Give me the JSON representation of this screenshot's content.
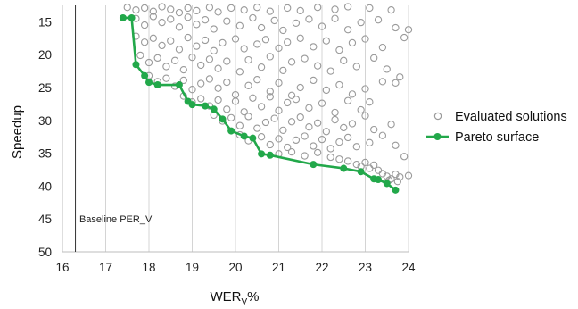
{
  "chart_data": {
    "type": "scatter",
    "xlabel": "WER",
    "xlabel_sub": "V",
    "xlabel_suffix": "%",
    "ylabel": "Speedup",
    "xlim": [
      16,
      24
    ],
    "ylim": [
      12.5,
      50
    ],
    "y_inverted": true,
    "grid": "vertical",
    "legend_position": "right",
    "x_ticks": [
      16,
      17,
      18,
      19,
      20,
      21,
      22,
      23,
      24
    ],
    "y_ticks": [
      15,
      20,
      25,
      30,
      35,
      40,
      45,
      50
    ],
    "annotation": {
      "text": "Baseline PER_V",
      "x": 16.35,
      "y": 45
    },
    "series": [
      {
        "name": "Evaluated solutions",
        "style": "hollow-circle",
        "color": "#9a9a9a",
        "points": [
          [
            17.5,
            12.8
          ],
          [
            17.7,
            13.2
          ],
          [
            17.9,
            12.9
          ],
          [
            18.1,
            13.4
          ],
          [
            18.3,
            12.7
          ],
          [
            18.5,
            13.1
          ],
          [
            18.7,
            13.6
          ],
          [
            18.9,
            12.9
          ],
          [
            19.1,
            13.3
          ],
          [
            19.4,
            12.8
          ],
          [
            19.6,
            13.5
          ],
          [
            19.9,
            12.9
          ],
          [
            20.2,
            13.2
          ],
          [
            20.5,
            12.8
          ],
          [
            20.8,
            13.4
          ],
          [
            21.2,
            12.9
          ],
          [
            21.5,
            13.3
          ],
          [
            21.9,
            12.8
          ],
          [
            22.3,
            13.1
          ],
          [
            22.6,
            12.7
          ],
          [
            23.1,
            12.9
          ],
          [
            23.6,
            13.2
          ],
          [
            17.7,
            14.5
          ],
          [
            17.9,
            15.5
          ],
          [
            18.1,
            14.2
          ],
          [
            18.3,
            15.1
          ],
          [
            18.5,
            14.6
          ],
          [
            18.7,
            15.8
          ],
          [
            18.9,
            14.3
          ],
          [
            19.1,
            15.4
          ],
          [
            19.3,
            14.7
          ],
          [
            19.5,
            16.1
          ],
          [
            19.8,
            14.9
          ],
          [
            20.1,
            15.6
          ],
          [
            20.4,
            14.4
          ],
          [
            20.6,
            15.9
          ],
          [
            20.9,
            14.8
          ],
          [
            21.1,
            16.3
          ],
          [
            21.4,
            15.2
          ],
          [
            21.7,
            14.6
          ],
          [
            22.0,
            15.7
          ],
          [
            22.3,
            14.5
          ],
          [
            22.6,
            16.2
          ],
          [
            22.9,
            15.1
          ],
          [
            23.3,
            14.7
          ],
          [
            23.7,
            15.9
          ],
          [
            24.0,
            16.2
          ],
          [
            17.7,
            17.2
          ],
          [
            17.9,
            18.1
          ],
          [
            18.1,
            17.5
          ],
          [
            18.3,
            18.6
          ],
          [
            18.5,
            17.9
          ],
          [
            18.7,
            19.2
          ],
          [
            18.9,
            17.4
          ],
          [
            19.1,
            18.7
          ],
          [
            19.3,
            17.8
          ],
          [
            19.5,
            19.4
          ],
          [
            19.7,
            18.2
          ],
          [
            20.0,
            17.6
          ],
          [
            20.2,
            19.1
          ],
          [
            20.5,
            18.4
          ],
          [
            20.7,
            17.7
          ],
          [
            21.0,
            19.0
          ],
          [
            21.2,
            18.1
          ],
          [
            21.5,
            17.5
          ],
          [
            21.8,
            18.8
          ],
          [
            22.1,
            17.9
          ],
          [
            22.4,
            19.3
          ],
          [
            22.7,
            18.2
          ],
          [
            23.0,
            17.6
          ],
          [
            23.4,
            18.9
          ],
          [
            23.9,
            17.4
          ],
          [
            17.8,
            20.1
          ],
          [
            18.0,
            21.2
          ],
          [
            18.2,
            20.5
          ],
          [
            18.4,
            21.8
          ],
          [
            18.6,
            20.9
          ],
          [
            18.8,
            22.3
          ],
          [
            19.0,
            20.4
          ],
          [
            19.2,
            21.6
          ],
          [
            19.4,
            20.7
          ],
          [
            19.6,
            22.1
          ],
          [
            19.8,
            21.0
          ],
          [
            20.1,
            22.6
          ],
          [
            20.3,
            20.8
          ],
          [
            20.6,
            21.9
          ],
          [
            20.8,
            20.3
          ],
          [
            21.1,
            22.4
          ],
          [
            21.3,
            21.1
          ],
          [
            21.6,
            20.6
          ],
          [
            21.9,
            21.7
          ],
          [
            22.2,
            22.5
          ],
          [
            22.5,
            20.9
          ],
          [
            22.8,
            21.8
          ],
          [
            23.2,
            20.5
          ],
          [
            23.5,
            22.2
          ],
          [
            23.8,
            23.4
          ],
          [
            18.0,
            23.2
          ],
          [
            18.2,
            24.1
          ],
          [
            18.4,
            23.6
          ],
          [
            18.6,
            24.8
          ],
          [
            18.8,
            23.9
          ],
          [
            19.0,
            25.3
          ],
          [
            19.2,
            24.4
          ],
          [
            19.4,
            23.7
          ],
          [
            19.6,
            25.1
          ],
          [
            19.8,
            24.2
          ],
          [
            20.0,
            26.1
          ],
          [
            20.3,
            24.7
          ],
          [
            20.5,
            23.8
          ],
          [
            20.8,
            25.6
          ],
          [
            21.0,
            24.3
          ],
          [
            21.3,
            26.2
          ],
          [
            21.5,
            25.0
          ],
          [
            21.8,
            23.9
          ],
          [
            22.1,
            25.4
          ],
          [
            22.4,
            24.6
          ],
          [
            22.7,
            26.0
          ],
          [
            23.0,
            25.2
          ],
          [
            23.4,
            24.1
          ],
          [
            23.7,
            24.3
          ],
          [
            18.8,
            26.3
          ],
          [
            19.0,
            27.2
          ],
          [
            19.2,
            26.7
          ],
          [
            19.4,
            27.8
          ],
          [
            19.6,
            26.9
          ],
          [
            19.8,
            28.3
          ],
          [
            20.0,
            27.1
          ],
          [
            20.2,
            28.7
          ],
          [
            20.4,
            26.6
          ],
          [
            20.6,
            27.9
          ],
          [
            20.8,
            26.4
          ],
          [
            21.0,
            28.5
          ],
          [
            21.2,
            27.3
          ],
          [
            21.4,
            26.8
          ],
          [
            21.7,
            28.1
          ],
          [
            22.0,
            27.4
          ],
          [
            22.3,
            28.8
          ],
          [
            22.6,
            27.0
          ],
          [
            22.9,
            28.4
          ],
          [
            23.1,
            27.2
          ],
          [
            19.5,
            29.2
          ],
          [
            19.7,
            30.1
          ],
          [
            19.9,
            29.6
          ],
          [
            20.1,
            30.8
          ],
          [
            20.3,
            29.4
          ],
          [
            20.5,
            31.2
          ],
          [
            20.7,
            30.3
          ],
          [
            20.9,
            29.7
          ],
          [
            21.1,
            31.5
          ],
          [
            21.3,
            30.2
          ],
          [
            21.5,
            29.5
          ],
          [
            21.7,
            31.0
          ],
          [
            21.9,
            30.4
          ],
          [
            22.1,
            31.7
          ],
          [
            22.3,
            29.9
          ],
          [
            22.5,
            31.1
          ],
          [
            22.7,
            30.5
          ],
          [
            23.0,
            29.3
          ],
          [
            23.2,
            31.4
          ],
          [
            23.6,
            30.6
          ],
          [
            20.1,
            32.2
          ],
          [
            20.3,
            33.1
          ],
          [
            20.6,
            32.5
          ],
          [
            20.8,
            33.7
          ],
          [
            21.0,
            32.8
          ],
          [
            21.2,
            34.1
          ],
          [
            21.4,
            33.0
          ],
          [
            21.6,
            32.4
          ],
          [
            21.8,
            33.9
          ],
          [
            22.0,
            32.9
          ],
          [
            22.2,
            34.3
          ],
          [
            22.4,
            33.3
          ],
          [
            22.6,
            32.6
          ],
          [
            22.8,
            34.0
          ],
          [
            23.1,
            33.4
          ],
          [
            23.4,
            32.3
          ],
          [
            23.7,
            33.8
          ],
          [
            21.0,
            35.1
          ],
          [
            21.3,
            34.8
          ],
          [
            21.6,
            35.4
          ],
          [
            21.9,
            34.9
          ],
          [
            22.2,
            35.6
          ],
          [
            22.4,
            35.9
          ],
          [
            22.6,
            36.2
          ],
          [
            22.8,
            36.7
          ],
          [
            22.9,
            37.0
          ],
          [
            23.0,
            36.4
          ],
          [
            23.1,
            37.3
          ],
          [
            23.2,
            36.8
          ],
          [
            23.3,
            37.6
          ],
          [
            23.4,
            38.1
          ],
          [
            23.5,
            38.5
          ],
          [
            23.6,
            38.9
          ],
          [
            23.7,
            38.2
          ],
          [
            23.8,
            38.6
          ],
          [
            23.9,
            35.5
          ],
          [
            24.0,
            38.4
          ],
          [
            23.55,
            39.1
          ],
          [
            23.75,
            39.3
          ]
        ]
      },
      {
        "name": "Pareto surface",
        "style": "line-marker",
        "color": "#22a84a",
        "points": [
          [
            17.4,
            14.4
          ],
          [
            17.6,
            14.4
          ],
          [
            17.7,
            21.5
          ],
          [
            17.9,
            23.2
          ],
          [
            18.0,
            24.2
          ],
          [
            18.2,
            24.6
          ],
          [
            18.7,
            24.6
          ],
          [
            18.9,
            27.1
          ],
          [
            19.0,
            27.6
          ],
          [
            19.3,
            27.8
          ],
          [
            19.5,
            28.3
          ],
          [
            19.7,
            29.8
          ],
          [
            19.9,
            31.6
          ],
          [
            20.2,
            32.4
          ],
          [
            20.4,
            32.7
          ],
          [
            20.6,
            35.1
          ],
          [
            20.8,
            35.3
          ],
          [
            21.8,
            36.7
          ],
          [
            22.5,
            37.3
          ],
          [
            22.9,
            37.8
          ],
          [
            23.2,
            38.9
          ],
          [
            23.3,
            39.0
          ],
          [
            23.5,
            39.6
          ],
          [
            23.7,
            40.6
          ]
        ]
      }
    ]
  }
}
